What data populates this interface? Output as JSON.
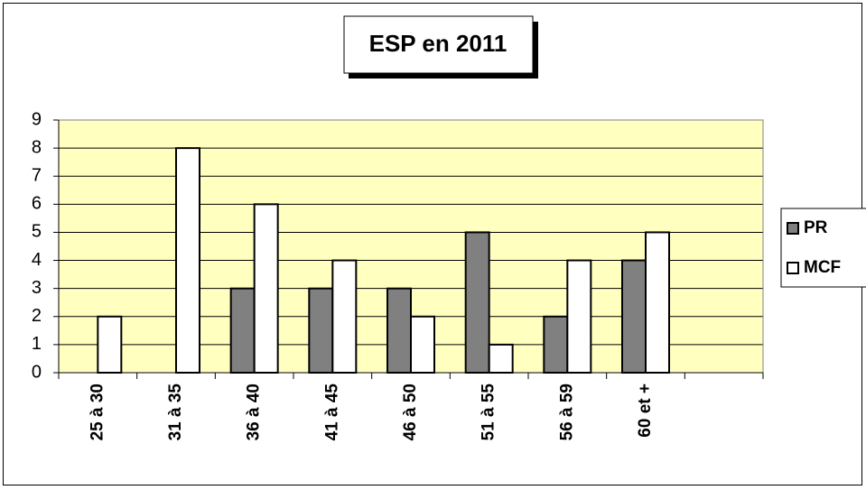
{
  "chart_data": {
    "type": "bar",
    "title": "ESP en 2011",
    "categories": [
      "25 à 30",
      "31 à 35",
      "36 à 40",
      "41 à 45",
      "46 à 50",
      "51 à 55",
      "56 à 59",
      "60 et +",
      null
    ],
    "series": [
      {
        "name": "PR",
        "color": "#808080",
        "values": [
          0,
          0,
          3,
          3,
          3,
          5,
          2,
          4,
          null
        ]
      },
      {
        "name": "MCF",
        "color": "#ffffff",
        "values": [
          2,
          8,
          6,
          4,
          2,
          1,
          4,
          5,
          null
        ]
      }
    ],
    "ylim": [
      0,
      9
    ],
    "yticks": [
      0,
      1,
      2,
      3,
      4,
      5,
      6,
      7,
      8,
      9
    ],
    "grid": true,
    "legend": "right"
  }
}
